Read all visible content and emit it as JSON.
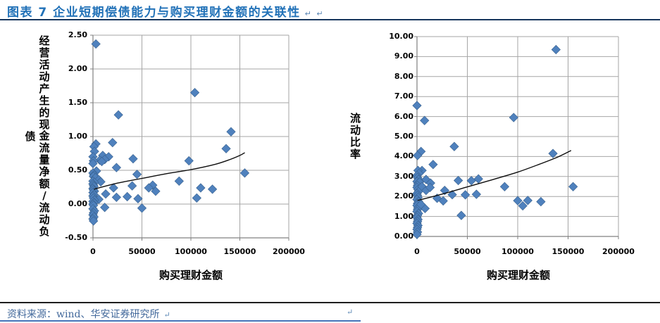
{
  "page": {
    "title": "图表 7  企业短期偿债能力与购买理财金额的关联性",
    "paragraph_mark": "↵",
    "source_note": "资料来源：wind、华安证券研究所",
    "colors": {
      "title_blue": "#2272B8",
      "marker_fill": "#4F81BD",
      "marker_edge": "#38618E",
      "grid": "#A6A6A6",
      "axis": "#808080",
      "trend": "#0d0d0d",
      "source_text": "#42689B",
      "accent_rule": "#4573B9",
      "dark_rule": "#17365D"
    }
  },
  "chart_data": [
    {
      "type": "scatter",
      "title": "",
      "xlabel": "购买理财金额",
      "ylabel": "经营活动产生的现金流量净额/流动负债",
      "ylabel_lines": [
        "经营活动产生的现金流量净额/流动负",
        "债"
      ],
      "xlim": [
        0,
        200000
      ],
      "ylim": [
        -0.5,
        2.5
      ],
      "xticks": [
        "0",
        "50000",
        "100000",
        "150000",
        "200000"
      ],
      "yticks": [
        "2.50",
        "2.00",
        "1.50",
        "1.00",
        "0.50",
        "0.00",
        "-0.50"
      ],
      "grid": true,
      "legend": "none",
      "points": [
        [
          3000,
          2.37
        ],
        [
          104000,
          1.65
        ],
        [
          26000,
          1.32
        ],
        [
          141000,
          1.07
        ],
        [
          20000,
          0.91
        ],
        [
          3000,
          0.89
        ],
        [
          1000,
          0.85
        ],
        [
          1500,
          0.78
        ],
        [
          136000,
          0.82
        ],
        [
          10000,
          0.72
        ],
        [
          16000,
          0.7
        ],
        [
          0,
          0.7
        ],
        [
          7000,
          0.65
        ],
        [
          500,
          0.64
        ],
        [
          12000,
          0.66
        ],
        [
          41000,
          0.67
        ],
        [
          98000,
          0.64
        ],
        [
          9000,
          0.63
        ],
        [
          0,
          0.6
        ],
        [
          24000,
          0.54
        ],
        [
          3500,
          0.49
        ],
        [
          155000,
          0.46
        ],
        [
          45000,
          0.44
        ],
        [
          0,
          0.46
        ],
        [
          1000,
          0.43
        ],
        [
          500,
          0.41
        ],
        [
          2500,
          0.39
        ],
        [
          6000,
          0.36
        ],
        [
          88000,
          0.34
        ],
        [
          0,
          0.34
        ],
        [
          8000,
          0.33
        ],
        [
          1500,
          0.32
        ],
        [
          0,
          0.3
        ],
        [
          500,
          0.28
        ],
        [
          61000,
          0.28
        ],
        [
          40000,
          0.27
        ],
        [
          1000,
          0.26
        ],
        [
          57000,
          0.24
        ],
        [
          21000,
          0.24
        ],
        [
          110000,
          0.24
        ],
        [
          0,
          0.23
        ],
        [
          122000,
          0.22
        ],
        [
          500,
          0.21
        ],
        [
          64000,
          0.19
        ],
        [
          1500,
          0.19
        ],
        [
          0,
          0.17
        ],
        [
          13000,
          0.15
        ],
        [
          1000,
          0.14
        ],
        [
          35000,
          0.11
        ],
        [
          0,
          0.12
        ],
        [
          24000,
          0.1
        ],
        [
          106000,
          0.09
        ],
        [
          500,
          0.09
        ],
        [
          46000,
          0.08
        ],
        [
          6000,
          0.07
        ],
        [
          1500,
          0.06
        ],
        [
          0,
          0.04
        ],
        [
          1000,
          0.02
        ],
        [
          0,
          0.0
        ],
        [
          500,
          -0.02
        ],
        [
          12000,
          -0.05
        ],
        [
          50000,
          -0.06
        ],
        [
          0,
          -0.07
        ],
        [
          1500,
          -0.1
        ],
        [
          500,
          -0.13
        ],
        [
          0,
          -0.16
        ],
        [
          1000,
          -0.19
        ],
        [
          0,
          -0.22
        ],
        [
          500,
          -0.25
        ]
      ],
      "trendline": [
        [
          1000,
          0.22
        ],
        [
          25000,
          0.31
        ],
        [
          50000,
          0.38
        ],
        [
          75000,
          0.45
        ],
        [
          100000,
          0.51
        ],
        [
          125000,
          0.59
        ],
        [
          140000,
          0.66
        ],
        [
          150000,
          0.72
        ],
        [
          155000,
          0.76
        ]
      ]
    },
    {
      "type": "scatter",
      "title": "",
      "xlabel": "购买理财金额",
      "ylabel": "流动比率",
      "ylabel_lines": [
        "流动比率"
      ],
      "xlim": [
        0,
        200000
      ],
      "ylim": [
        0,
        10
      ],
      "xticks": [
        "0",
        "50000",
        "100000",
        "150000",
        "200000"
      ],
      "yticks": [
        "10.00",
        "9.00",
        "8.00",
        "7.00",
        "6.00",
        "5.00",
        "4.00",
        "3.00",
        "2.00",
        "1.00",
        "0.00"
      ],
      "grid": true,
      "legend": "none",
      "points": [
        [
          138000,
          9.35
        ],
        [
          0,
          6.55
        ],
        [
          7500,
          5.8
        ],
        [
          96000,
          5.95
        ],
        [
          37000,
          4.5
        ],
        [
          4000,
          4.25
        ],
        [
          500,
          4.05
        ],
        [
          135000,
          4.15
        ],
        [
          16000,
          3.6
        ],
        [
          5000,
          3.3
        ],
        [
          1000,
          3.3
        ],
        [
          2000,
          3.15
        ],
        [
          0,
          3.05
        ],
        [
          500,
          2.95
        ],
        [
          1500,
          2.85
        ],
        [
          0,
          2.75
        ],
        [
          1000,
          2.65
        ],
        [
          2500,
          2.72
        ],
        [
          9000,
          2.85
        ],
        [
          13500,
          2.67
        ],
        [
          41000,
          2.8
        ],
        [
          54000,
          2.79
        ],
        [
          61000,
          2.88
        ],
        [
          87000,
          2.49
        ],
        [
          155000,
          2.49
        ],
        [
          27500,
          2.3
        ],
        [
          35000,
          2.09
        ],
        [
          48000,
          2.08
        ],
        [
          59000,
          2.11
        ],
        [
          20000,
          1.91
        ],
        [
          100000,
          1.79
        ],
        [
          105000,
          1.53
        ],
        [
          110000,
          1.8
        ],
        [
          123000,
          1.74
        ],
        [
          8000,
          1.4
        ],
        [
          44000,
          1.05
        ],
        [
          500,
          2.55
        ],
        [
          0,
          2.45
        ],
        [
          1000,
          2.35
        ],
        [
          1500,
          2.25
        ],
        [
          0,
          2.15
        ],
        [
          500,
          2.05
        ],
        [
          1000,
          1.95
        ],
        [
          0,
          1.85
        ],
        [
          1500,
          1.75
        ],
        [
          500,
          1.65
        ],
        [
          0,
          1.55
        ],
        [
          1000,
          1.45
        ],
        [
          500,
          1.35
        ],
        [
          0,
          1.25
        ],
        [
          1500,
          1.15
        ],
        [
          500,
          1.05
        ],
        [
          0,
          0.95
        ],
        [
          1000,
          0.85
        ],
        [
          500,
          0.75
        ],
        [
          0,
          0.65
        ],
        [
          1000,
          0.55
        ],
        [
          500,
          0.45
        ],
        [
          0,
          0.35
        ],
        [
          500,
          0.22
        ],
        [
          0,
          0.1
        ],
        [
          5000,
          2.5
        ],
        [
          9000,
          2.3
        ],
        [
          13000,
          2.45
        ],
        [
          26000,
          1.78
        ],
        [
          4000,
          1.6
        ]
      ],
      "trendline": [
        [
          500,
          1.8
        ],
        [
          25000,
          2.12
        ],
        [
          50000,
          2.48
        ],
        [
          75000,
          2.84
        ],
        [
          100000,
          3.22
        ],
        [
          125000,
          3.68
        ],
        [
          140000,
          3.98
        ],
        [
          153000,
          4.3
        ]
      ]
    }
  ]
}
